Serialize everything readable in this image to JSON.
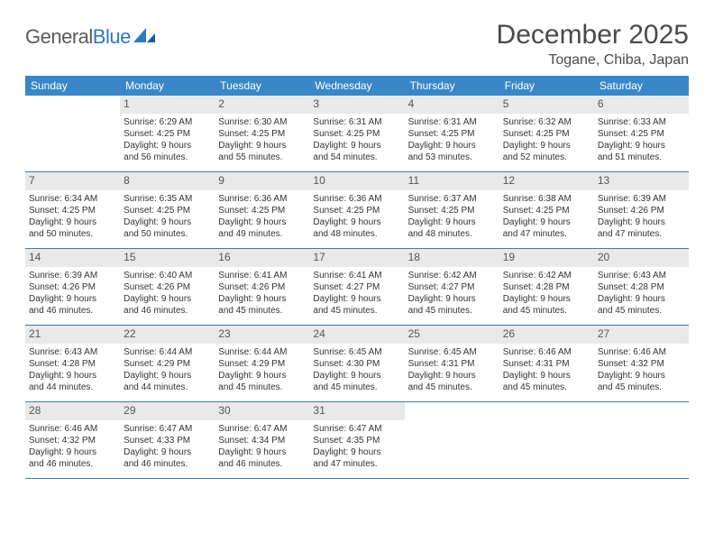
{
  "logo": {
    "word1": "General",
    "word2": "Blue"
  },
  "title": "December 2025",
  "location": "Togane, Chiba, Japan",
  "colors": {
    "header_bg": "#3a87c8",
    "header_text": "#ffffff",
    "daynum_bg": "#e9e9e9",
    "border": "#3a7db0",
    "logo_gray": "#5a5a5a",
    "logo_blue": "#2f78c4",
    "text": "#333333"
  },
  "dayHeaders": [
    "Sunday",
    "Monday",
    "Tuesday",
    "Wednesday",
    "Thursday",
    "Friday",
    "Saturday"
  ],
  "weeks": [
    [
      {
        "day": "",
        "empty": true
      },
      {
        "day": "1",
        "sunrise": "Sunrise: 6:29 AM",
        "sunset": "Sunset: 4:25 PM",
        "dl1": "Daylight: 9 hours",
        "dl2": "and 56 minutes."
      },
      {
        "day": "2",
        "sunrise": "Sunrise: 6:30 AM",
        "sunset": "Sunset: 4:25 PM",
        "dl1": "Daylight: 9 hours",
        "dl2": "and 55 minutes."
      },
      {
        "day": "3",
        "sunrise": "Sunrise: 6:31 AM",
        "sunset": "Sunset: 4:25 PM",
        "dl1": "Daylight: 9 hours",
        "dl2": "and 54 minutes."
      },
      {
        "day": "4",
        "sunrise": "Sunrise: 6:31 AM",
        "sunset": "Sunset: 4:25 PM",
        "dl1": "Daylight: 9 hours",
        "dl2": "and 53 minutes."
      },
      {
        "day": "5",
        "sunrise": "Sunrise: 6:32 AM",
        "sunset": "Sunset: 4:25 PM",
        "dl1": "Daylight: 9 hours",
        "dl2": "and 52 minutes."
      },
      {
        "day": "6",
        "sunrise": "Sunrise: 6:33 AM",
        "sunset": "Sunset: 4:25 PM",
        "dl1": "Daylight: 9 hours",
        "dl2": "and 51 minutes."
      }
    ],
    [
      {
        "day": "7",
        "sunrise": "Sunrise: 6:34 AM",
        "sunset": "Sunset: 4:25 PM",
        "dl1": "Daylight: 9 hours",
        "dl2": "and 50 minutes."
      },
      {
        "day": "8",
        "sunrise": "Sunrise: 6:35 AM",
        "sunset": "Sunset: 4:25 PM",
        "dl1": "Daylight: 9 hours",
        "dl2": "and 50 minutes."
      },
      {
        "day": "9",
        "sunrise": "Sunrise: 6:36 AM",
        "sunset": "Sunset: 4:25 PM",
        "dl1": "Daylight: 9 hours",
        "dl2": "and 49 minutes."
      },
      {
        "day": "10",
        "sunrise": "Sunrise: 6:36 AM",
        "sunset": "Sunset: 4:25 PM",
        "dl1": "Daylight: 9 hours",
        "dl2": "and 48 minutes."
      },
      {
        "day": "11",
        "sunrise": "Sunrise: 6:37 AM",
        "sunset": "Sunset: 4:25 PM",
        "dl1": "Daylight: 9 hours",
        "dl2": "and 48 minutes."
      },
      {
        "day": "12",
        "sunrise": "Sunrise: 6:38 AM",
        "sunset": "Sunset: 4:25 PM",
        "dl1": "Daylight: 9 hours",
        "dl2": "and 47 minutes."
      },
      {
        "day": "13",
        "sunrise": "Sunrise: 6:39 AM",
        "sunset": "Sunset: 4:26 PM",
        "dl1": "Daylight: 9 hours",
        "dl2": "and 47 minutes."
      }
    ],
    [
      {
        "day": "14",
        "sunrise": "Sunrise: 6:39 AM",
        "sunset": "Sunset: 4:26 PM",
        "dl1": "Daylight: 9 hours",
        "dl2": "and 46 minutes."
      },
      {
        "day": "15",
        "sunrise": "Sunrise: 6:40 AM",
        "sunset": "Sunset: 4:26 PM",
        "dl1": "Daylight: 9 hours",
        "dl2": "and 46 minutes."
      },
      {
        "day": "16",
        "sunrise": "Sunrise: 6:41 AM",
        "sunset": "Sunset: 4:26 PM",
        "dl1": "Daylight: 9 hours",
        "dl2": "and 45 minutes."
      },
      {
        "day": "17",
        "sunrise": "Sunrise: 6:41 AM",
        "sunset": "Sunset: 4:27 PM",
        "dl1": "Daylight: 9 hours",
        "dl2": "and 45 minutes."
      },
      {
        "day": "18",
        "sunrise": "Sunrise: 6:42 AM",
        "sunset": "Sunset: 4:27 PM",
        "dl1": "Daylight: 9 hours",
        "dl2": "and 45 minutes."
      },
      {
        "day": "19",
        "sunrise": "Sunrise: 6:42 AM",
        "sunset": "Sunset: 4:28 PM",
        "dl1": "Daylight: 9 hours",
        "dl2": "and 45 minutes."
      },
      {
        "day": "20",
        "sunrise": "Sunrise: 6:43 AM",
        "sunset": "Sunset: 4:28 PM",
        "dl1": "Daylight: 9 hours",
        "dl2": "and 45 minutes."
      }
    ],
    [
      {
        "day": "21",
        "sunrise": "Sunrise: 6:43 AM",
        "sunset": "Sunset: 4:28 PM",
        "dl1": "Daylight: 9 hours",
        "dl2": "and 44 minutes."
      },
      {
        "day": "22",
        "sunrise": "Sunrise: 6:44 AM",
        "sunset": "Sunset: 4:29 PM",
        "dl1": "Daylight: 9 hours",
        "dl2": "and 44 minutes."
      },
      {
        "day": "23",
        "sunrise": "Sunrise: 6:44 AM",
        "sunset": "Sunset: 4:29 PM",
        "dl1": "Daylight: 9 hours",
        "dl2": "and 45 minutes."
      },
      {
        "day": "24",
        "sunrise": "Sunrise: 6:45 AM",
        "sunset": "Sunset: 4:30 PM",
        "dl1": "Daylight: 9 hours",
        "dl2": "and 45 minutes."
      },
      {
        "day": "25",
        "sunrise": "Sunrise: 6:45 AM",
        "sunset": "Sunset: 4:31 PM",
        "dl1": "Daylight: 9 hours",
        "dl2": "and 45 minutes."
      },
      {
        "day": "26",
        "sunrise": "Sunrise: 6:46 AM",
        "sunset": "Sunset: 4:31 PM",
        "dl1": "Daylight: 9 hours",
        "dl2": "and 45 minutes."
      },
      {
        "day": "27",
        "sunrise": "Sunrise: 6:46 AM",
        "sunset": "Sunset: 4:32 PM",
        "dl1": "Daylight: 9 hours",
        "dl2": "and 45 minutes."
      }
    ],
    [
      {
        "day": "28",
        "sunrise": "Sunrise: 6:46 AM",
        "sunset": "Sunset: 4:32 PM",
        "dl1": "Daylight: 9 hours",
        "dl2": "and 46 minutes."
      },
      {
        "day": "29",
        "sunrise": "Sunrise: 6:47 AM",
        "sunset": "Sunset: 4:33 PM",
        "dl1": "Daylight: 9 hours",
        "dl2": "and 46 minutes."
      },
      {
        "day": "30",
        "sunrise": "Sunrise: 6:47 AM",
        "sunset": "Sunset: 4:34 PM",
        "dl1": "Daylight: 9 hours",
        "dl2": "and 46 minutes."
      },
      {
        "day": "31",
        "sunrise": "Sunrise: 6:47 AM",
        "sunset": "Sunset: 4:35 PM",
        "dl1": "Daylight: 9 hours",
        "dl2": "and 47 minutes."
      },
      {
        "day": "",
        "empty": true
      },
      {
        "day": "",
        "empty": true
      },
      {
        "day": "",
        "empty": true
      }
    ]
  ]
}
